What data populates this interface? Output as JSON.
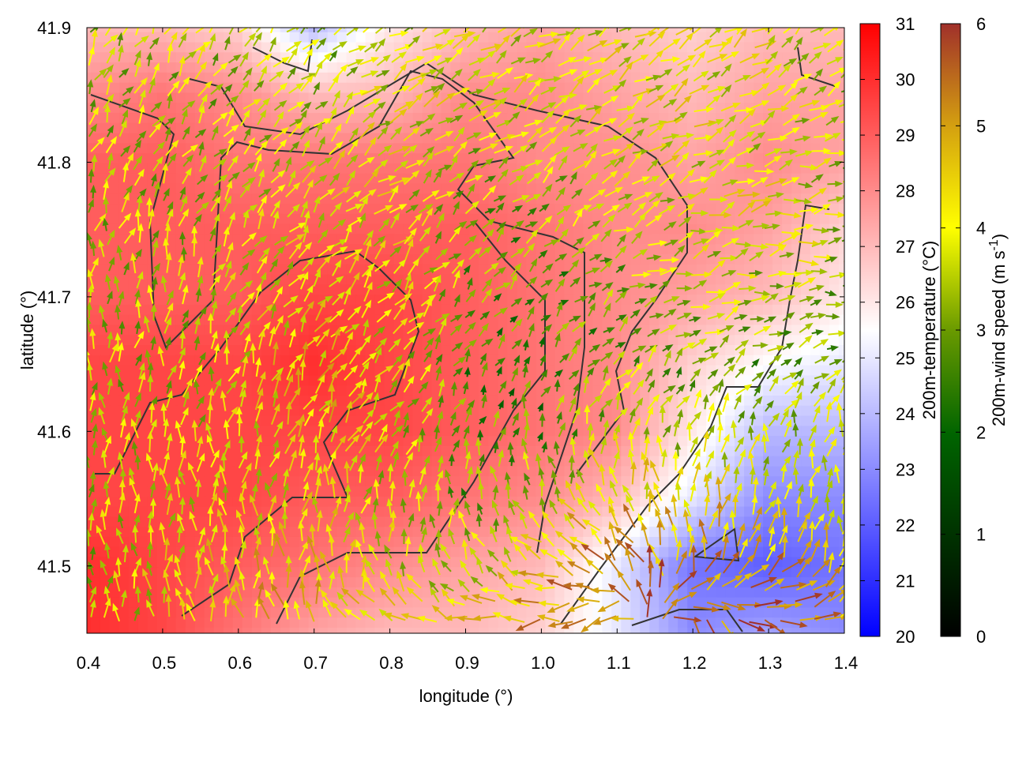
{
  "chart_data": {
    "type": "heatmap",
    "xlabel": "longitude (°)",
    "ylabel": "latitude (°)",
    "xlim": [
      0.4,
      1.4
    ],
    "ylim": [
      41.45,
      41.9
    ],
    "xticks": [
      "0.4",
      "0.5",
      "0.6",
      "0.7",
      "0.8",
      "0.9",
      "1.0",
      "1.1",
      "1.2",
      "1.3",
      "1.4"
    ],
    "yticks": [
      "41.5",
      "41.6",
      "41.7",
      "41.8",
      "41.9"
    ],
    "grid_lon": [
      0.4,
      0.5,
      0.6,
      0.7,
      0.8,
      0.9,
      1.0,
      1.1,
      1.2,
      1.3,
      1.4
    ],
    "grid_lat": [
      41.9,
      41.85,
      41.8,
      41.75,
      41.7,
      41.65,
      41.6,
      41.55,
      41.5,
      41.45
    ],
    "temperature": [
      [
        27,
        27,
        26.5,
        24,
        26,
        27,
        27.5,
        27,
        26.5,
        27,
        27
      ],
      [
        28,
        28.5,
        28,
        27,
        27,
        28,
        28,
        27.5,
        27,
        27.5,
        27.5
      ],
      [
        29,
        29,
        28.5,
        28.5,
        28.5,
        28.5,
        28,
        28,
        27.5,
        28,
        27.5
      ],
      [
        29,
        29,
        29,
        29,
        29,
        29,
        28.5,
        28,
        28,
        27.5,
        26.5
      ],
      [
        29,
        29,
        29,
        29.5,
        29.5,
        29,
        28.5,
        28,
        27.5,
        27,
        26
      ],
      [
        29.5,
        29.5,
        29.5,
        30,
        29.5,
        29,
        28.5,
        28,
        26.5,
        25.5,
        25
      ],
      [
        29.5,
        29.5,
        29.5,
        29.5,
        29.5,
        29,
        28.5,
        28,
        26,
        24,
        24
      ],
      [
        29.5,
        29.5,
        29.5,
        29,
        29,
        28.5,
        28,
        27,
        25,
        23,
        23
      ],
      [
        30,
        29.5,
        29,
        28.5,
        28,
        27.5,
        27,
        25,
        22.5,
        22,
        22.5
      ],
      [
        30,
        29.5,
        28.5,
        27.5,
        27,
        27,
        26.5,
        25,
        23,
        23.5,
        23
      ]
    ],
    "wind_speed": [
      [
        3,
        3,
        3,
        2.5,
        3,
        3.5,
        3.5,
        3.5,
        3.5,
        3.5,
        3.5
      ],
      [
        3,
        3,
        3,
        3,
        3.5,
        3.5,
        3.5,
        3.5,
        3.5,
        3.5,
        3
      ],
      [
        3,
        3,
        3,
        3.5,
        3.5,
        3,
        3,
        3.5,
        3.5,
        3.5,
        3
      ],
      [
        3,
        3,
        3,
        3.5,
        3.5,
        2.5,
        2.5,
        3,
        3.5,
        3.5,
        3
      ],
      [
        3,
        3,
        3.5,
        3.5,
        3.5,
        2.5,
        2,
        2.5,
        3,
        3,
        2.5
      ],
      [
        3,
        3,
        3.5,
        4,
        3.5,
        2,
        2,
        2.5,
        2.5,
        2.5,
        2.5
      ],
      [
        3,
        3,
        3.5,
        4,
        3.5,
        2,
        2,
        3,
        3,
        3,
        3
      ],
      [
        3,
        3.5,
        3.5,
        3.5,
        3,
        2.5,
        3,
        4,
        4,
        3.5,
        3.5
      ],
      [
        3,
        3.5,
        4,
        4,
        3.5,
        3,
        4,
        5,
        5,
        4.5,
        4
      ],
      [
        3,
        3.5,
        4.5,
        4.5,
        4,
        4,
        5,
        5.5,
        5.5,
        5.5,
        5
      ]
    ],
    "wind_direction_deg": [
      [
        30,
        30,
        40,
        45,
        60,
        60,
        60,
        60,
        60,
        50,
        60
      ],
      [
        30,
        30,
        40,
        45,
        60,
        60,
        60,
        60,
        60,
        60,
        60
      ],
      [
        20,
        30,
        40,
        45,
        50,
        50,
        50,
        60,
        60,
        70,
        80
      ],
      [
        10,
        20,
        30,
        40,
        45,
        45,
        45,
        60,
        70,
        80,
        90
      ],
      [
        0,
        10,
        30,
        40,
        40,
        40,
        45,
        60,
        70,
        80,
        90
      ],
      [
        0,
        10,
        20,
        30,
        40,
        30,
        30,
        40,
        50,
        60,
        60
      ],
      [
        0,
        0,
        10,
        20,
        30,
        20,
        10,
        20,
        20,
        10,
        10
      ],
      [
        0,
        0,
        0,
        10,
        10,
        0,
        -20,
        -30,
        0,
        10,
        10
      ],
      [
        0,
        0,
        0,
        0,
        -10,
        -30,
        -60,
        -40,
        0,
        30,
        10
      ],
      [
        0,
        0,
        -10,
        -20,
        -60,
        -80,
        -100,
        -140,
        180,
        140,
        90
      ]
    ],
    "colorbars": [
      {
        "label": "200m-temperature (°C)",
        "range": [
          20,
          31
        ],
        "ticks": [
          "20",
          "21",
          "22",
          "23",
          "24",
          "25",
          "26",
          "27",
          "28",
          "29",
          "30",
          "31"
        ],
        "colors": [
          "#0000ff",
          "#ffffff",
          "#ff0000"
        ]
      },
      {
        "label": "200m-wind speed (m s",
        "label_sup": "-1",
        "label_end": ")",
        "range": [
          0,
          6
        ],
        "ticks": [
          "0",
          "1",
          "2",
          "3",
          "4",
          "5",
          "6"
        ],
        "colors": [
          "#000000",
          "#006400",
          "#9ec000",
          "#ffff00",
          "#d4a010",
          "#a0302a"
        ]
      }
    ]
  }
}
